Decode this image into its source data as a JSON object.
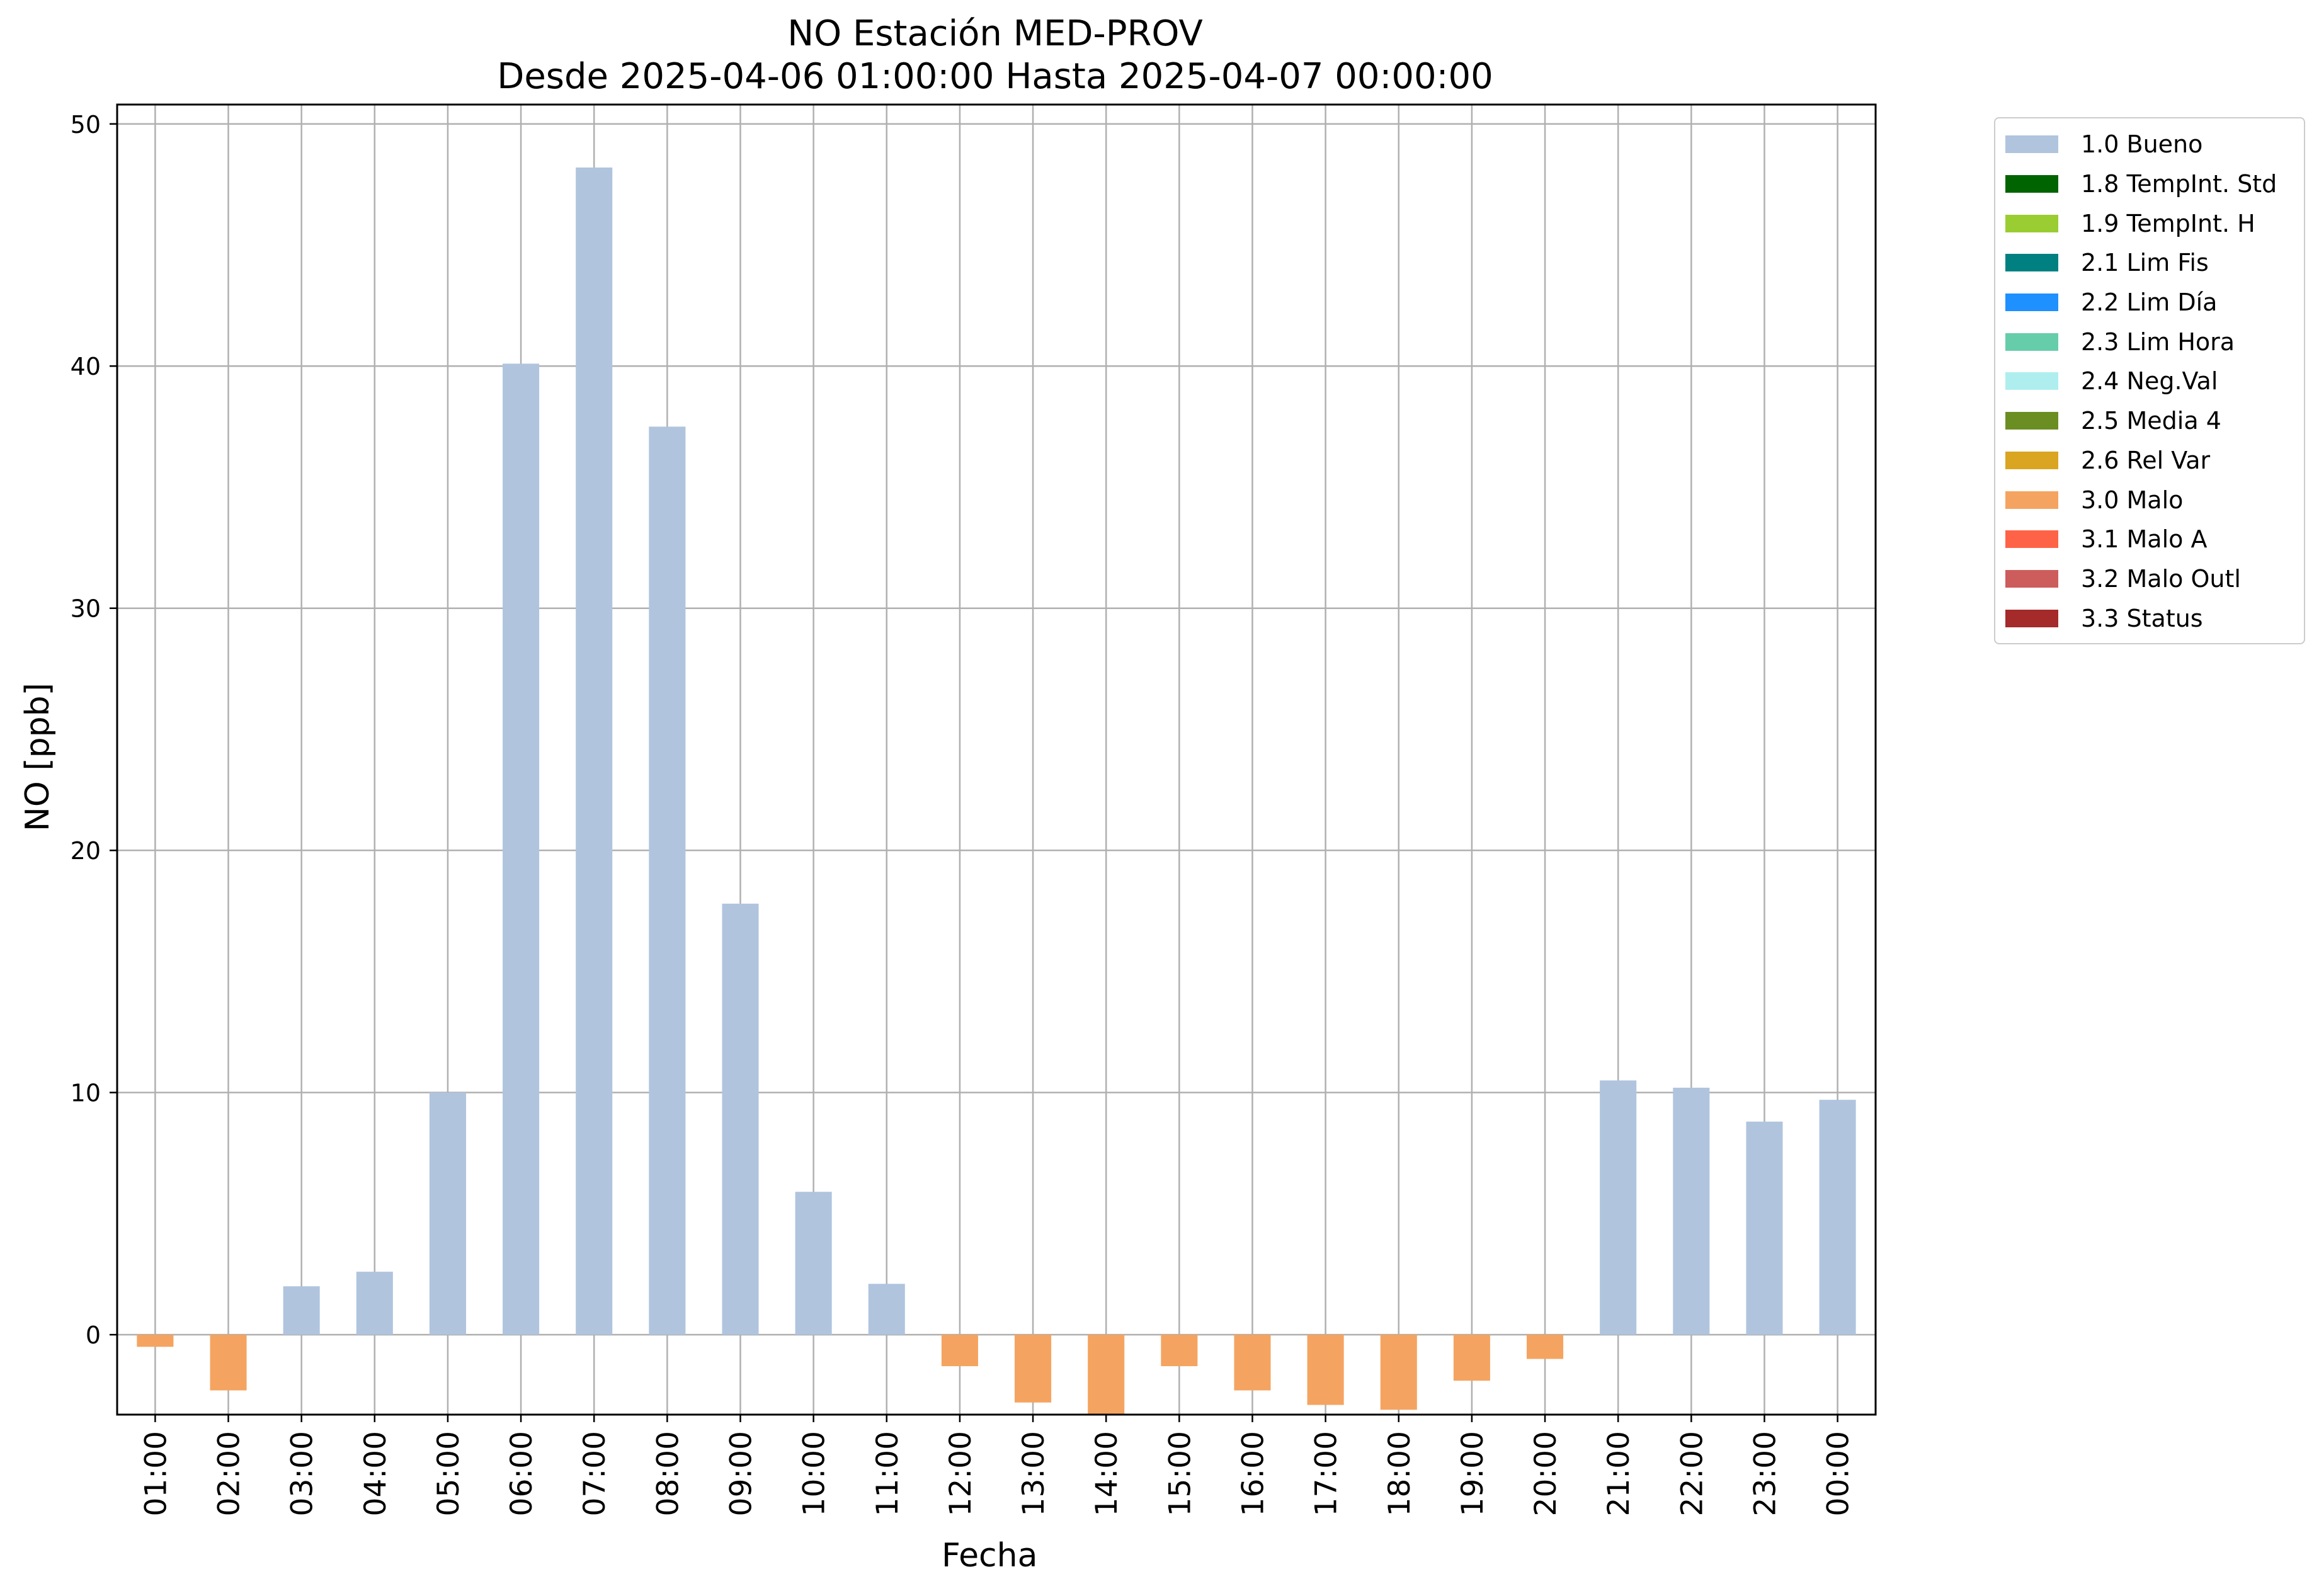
{
  "title": {
    "line1": "NO Estación MED-PROV",
    "line2": "Desde 2025-04-06 01:00:00 Hasta 2025-04-07 00:00:00"
  },
  "legend": [
    {
      "label": "1.0 Bueno",
      "color": "#b0c4de"
    },
    {
      "label": "1.8 TempInt. Std",
      "color": "#006400"
    },
    {
      "label": "1.9 TempInt. H",
      "color": "#9acd32"
    },
    {
      "label": "2.1 Lim Fis",
      "color": "#008080"
    },
    {
      "label": "2.2 Lim Día",
      "color": "#1e90ff"
    },
    {
      "label": "2.3 Lim Hora",
      "color": "#66cdaa"
    },
    {
      "label": "2.4 Neg.Val",
      "color": "#afeeee"
    },
    {
      "label": "2.5 Media 4",
      "color": "#6b8e23"
    },
    {
      "label": "2.6 Rel Var",
      "color": "#daa520"
    },
    {
      "label": "3.0 Malo",
      "color": "#f4a460"
    },
    {
      "label": "3.1 Malo A",
      "color": "#ff6347"
    },
    {
      "label": "3.2 Malo Outl",
      "color": "#cd5c5c"
    },
    {
      "label": "3.3 Status",
      "color": "#a52a2a"
    }
  ],
  "chart_data": {
    "type": "bar",
    "title": "NO Estación MED-PROV\nDesde 2025-04-06 01:00:00 Hasta 2025-04-07 00:00:00",
    "xlabel": "Fecha",
    "ylabel": "NO [ppb]",
    "ylim": [
      -3.3,
      50.8
    ],
    "yticks": [
      0,
      10,
      20,
      30,
      40,
      50
    ],
    "grid": true,
    "legend_position": "outside-top-right",
    "categories": [
      "01:00",
      "02:00",
      "03:00",
      "04:00",
      "05:00",
      "06:00",
      "07:00",
      "08:00",
      "09:00",
      "10:00",
      "11:00",
      "12:00",
      "13:00",
      "14:00",
      "15:00",
      "16:00",
      "17:00",
      "18:00",
      "19:00",
      "20:00",
      "21:00",
      "22:00",
      "23:00",
      "00:00"
    ],
    "values": [
      -0.5,
      -2.3,
      2.0,
      2.6,
      10.0,
      40.1,
      48.2,
      37.5,
      17.8,
      5.9,
      2.1,
      -1.3,
      -2.8,
      -3.3,
      -1.3,
      -2.3,
      -2.9,
      -3.1,
      -1.9,
      -1.0,
      10.5,
      10.2,
      8.8,
      9.7
    ],
    "flags": [
      "3.0 Malo",
      "3.0 Malo",
      "1.0 Bueno",
      "1.0 Bueno",
      "1.0 Bueno",
      "1.0 Bueno",
      "1.0 Bueno",
      "1.0 Bueno",
      "1.0 Bueno",
      "1.0 Bueno",
      "1.0 Bueno",
      "3.0 Malo",
      "3.0 Malo",
      "3.0 Malo",
      "3.0 Malo",
      "3.0 Malo",
      "3.0 Malo",
      "3.0 Malo",
      "3.0 Malo",
      "3.0 Malo",
      "1.0 Bueno",
      "1.0 Bueno",
      "1.0 Bueno",
      "1.0 Bueno"
    ]
  }
}
